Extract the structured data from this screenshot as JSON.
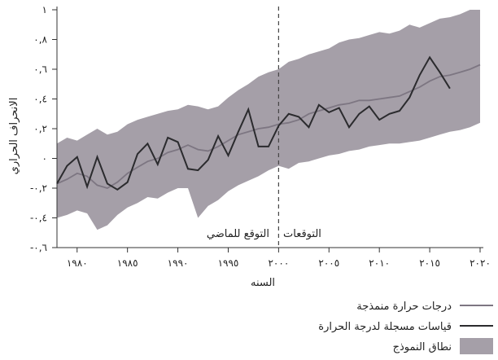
{
  "chart_data": {
    "type": "line",
    "xlabel": "السنه",
    "ylabel": "الانحراف الحراري",
    "xlim": [
      1978,
      2020
    ],
    "ylim": [
      -0.6,
      1.0
    ],
    "x_ticks": [
      1980,
      1985,
      1990,
      1995,
      2000,
      2005,
      2010,
      2015,
      2020
    ],
    "x_tick_labels": [
      "١٩٨٠",
      "١٩٨٥",
      "١٩٩٠",
      "١٩٩٥",
      "٢٠٠٠",
      "٢٠٠٥",
      "٢٠١٠",
      "٢٠١٥",
      "٢٠٢٠"
    ],
    "y_ticks": [
      -0.6,
      -0.4,
      -0.2,
      0,
      0.2,
      0.4,
      0.6,
      0.8,
      1.0
    ],
    "y_tick_labels": [
      "-٠,٦",
      "-٠,٤",
      "-٠,٢",
      "٠",
      "٠,٢",
      "٠,٤",
      "٠,٦",
      "٠,٨",
      "١"
    ],
    "divider": {
      "x": 2000,
      "style": "dashed"
    },
    "annotations": {
      "past": "التوقع للماضي",
      "future": "التوقعات"
    },
    "band": {
      "name": "نطاق النموذج",
      "color": "#a59fa8",
      "x": [
        1978,
        1979,
        1980,
        1981,
        1982,
        1983,
        1984,
        1985,
        1986,
        1987,
        1988,
        1989,
        1990,
        1991,
        1992,
        1993,
        1994,
        1995,
        1996,
        1997,
        1998,
        1999,
        2000,
        2001,
        2002,
        2003,
        2004,
        2005,
        2006,
        2007,
        2008,
        2009,
        2010,
        2011,
        2012,
        2013,
        2014,
        2015,
        2016,
        2017,
        2018,
        2019,
        2020
      ],
      "upper": [
        0.1,
        0.14,
        0.12,
        0.16,
        0.2,
        0.16,
        0.18,
        0.23,
        0.26,
        0.28,
        0.3,
        0.32,
        0.33,
        0.36,
        0.35,
        0.33,
        0.35,
        0.41,
        0.46,
        0.5,
        0.55,
        0.58,
        0.6,
        0.65,
        0.67,
        0.7,
        0.72,
        0.74,
        0.78,
        0.8,
        0.81,
        0.83,
        0.85,
        0.84,
        0.86,
        0.9,
        0.88,
        0.91,
        0.94,
        0.95,
        0.97,
        1.0,
        1.0
      ],
      "lower": [
        -0.4,
        -0.38,
        -0.35,
        -0.37,
        -0.48,
        -0.45,
        -0.38,
        -0.33,
        -0.3,
        -0.26,
        -0.27,
        -0.23,
        -0.2,
        -0.2,
        -0.4,
        -0.32,
        -0.28,
        -0.22,
        -0.18,
        -0.15,
        -0.12,
        -0.08,
        -0.05,
        -0.07,
        -0.03,
        -0.02,
        0.0,
        0.02,
        0.03,
        0.05,
        0.06,
        0.08,
        0.09,
        0.1,
        0.1,
        0.11,
        0.12,
        0.14,
        0.16,
        0.18,
        0.19,
        0.21,
        0.24
      ]
    },
    "series": [
      {
        "name": "درجات حرارة منمذجة",
        "color": "#7d7682",
        "x": [
          1978,
          1979,
          1980,
          1981,
          1982,
          1983,
          1984,
          1985,
          1986,
          1987,
          1988,
          1989,
          1990,
          1991,
          1992,
          1993,
          1994,
          1995,
          1996,
          1997,
          1998,
          1999,
          2000,
          2001,
          2002,
          2003,
          2004,
          2005,
          2006,
          2007,
          2008,
          2009,
          2010,
          2011,
          2012,
          2013,
          2014,
          2015,
          2016,
          2017,
          2018,
          2019,
          2020
        ],
        "values": [
          -0.17,
          -0.14,
          -0.1,
          -0.12,
          -0.18,
          -0.2,
          -0.16,
          -0.1,
          -0.06,
          -0.02,
          0.0,
          0.04,
          0.06,
          0.09,
          0.06,
          0.05,
          0.08,
          0.12,
          0.16,
          0.18,
          0.2,
          0.21,
          0.23,
          0.24,
          0.26,
          0.3,
          0.32,
          0.34,
          0.36,
          0.37,
          0.39,
          0.39,
          0.4,
          0.41,
          0.42,
          0.45,
          0.48,
          0.52,
          0.55,
          0.56,
          0.58,
          0.6,
          0.63
        ]
      },
      {
        "name": "قياسات مسجلة لدرجة الحرارة",
        "color": "#2b2b2e",
        "x": [
          1978,
          1979,
          1980,
          1981,
          1982,
          1983,
          1984,
          1985,
          1986,
          1987,
          1988,
          1989,
          1990,
          1991,
          1992,
          1993,
          1994,
          1995,
          1996,
          1997,
          1998,
          1999,
          2000,
          2001,
          2002,
          2003,
          2004,
          2005,
          2006,
          2007,
          2008,
          2009,
          2010,
          2011,
          2012,
          2013,
          2014,
          2015,
          2016,
          2017
        ],
        "values": [
          -0.17,
          -0.05,
          0.01,
          -0.19,
          0.01,
          -0.17,
          -0.21,
          -0.16,
          0.03,
          0.1,
          -0.04,
          0.14,
          0.11,
          -0.07,
          -0.08,
          -0.01,
          0.15,
          0.02,
          0.18,
          0.33,
          0.08,
          0.08,
          0.22,
          0.3,
          0.28,
          0.21,
          0.36,
          0.31,
          0.34,
          0.21,
          0.3,
          0.35,
          0.26,
          0.3,
          0.32,
          0.41,
          0.56,
          0.68,
          0.58,
          0.47
        ]
      }
    ],
    "legend": {
      "placement": "bottom-right",
      "items": [
        {
          "label": "درجات حرارة منمذجة",
          "kind": "line",
          "color": "#7d7682"
        },
        {
          "label": "قياسات مسجلة لدرجة الحرارة",
          "kind": "line",
          "color": "#2b2b2e"
        },
        {
          "label": "نطاق النموذج",
          "kind": "swatch",
          "color": "#a59fa8"
        }
      ]
    }
  }
}
